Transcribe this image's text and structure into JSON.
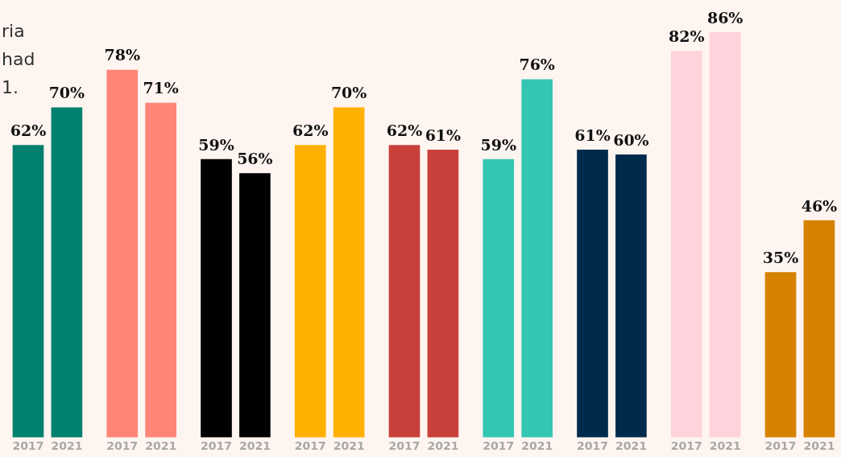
{
  "chart_data": {
    "type": "bar",
    "categories": [
      "2017",
      "2021",
      "2017",
      "2021",
      "2017",
      "2021",
      "2017",
      "2021",
      "2017",
      "2021",
      "2017",
      "2021",
      "2017",
      "2021",
      "2017",
      "2021",
      "2017",
      "2021"
    ],
    "values": [
      62,
      70,
      78,
      71,
      59,
      56,
      62,
      70,
      62,
      61,
      59,
      76,
      61,
      60,
      82,
      86,
      35,
      46
    ],
    "colors": [
      "#00806e",
      "#00806e",
      "#ff8577",
      "#ff8577",
      "#000000",
      "#000000",
      "#ffb000",
      "#ffb000",
      "#c9403a",
      "#c9403a",
      "#33c6b3",
      "#33c6b3",
      "#002a4c",
      "#002a4c",
      "#ffd3db",
      "#ffd3db",
      "#d68100",
      "#d68100"
    ],
    "data_labels": true,
    "value_labels": [
      "62%",
      "70%",
      "78%",
      "71%",
      "59%",
      "56%",
      "62%",
      "70%",
      "62%",
      "61%",
      "59%",
      "76%",
      "61%",
      "60%",
      "82%",
      "86%",
      "35%",
      "46%"
    ],
    "annotations": [
      "ria",
      "had",
      "1."
    ],
    "grid": false,
    "legend": false
  }
}
